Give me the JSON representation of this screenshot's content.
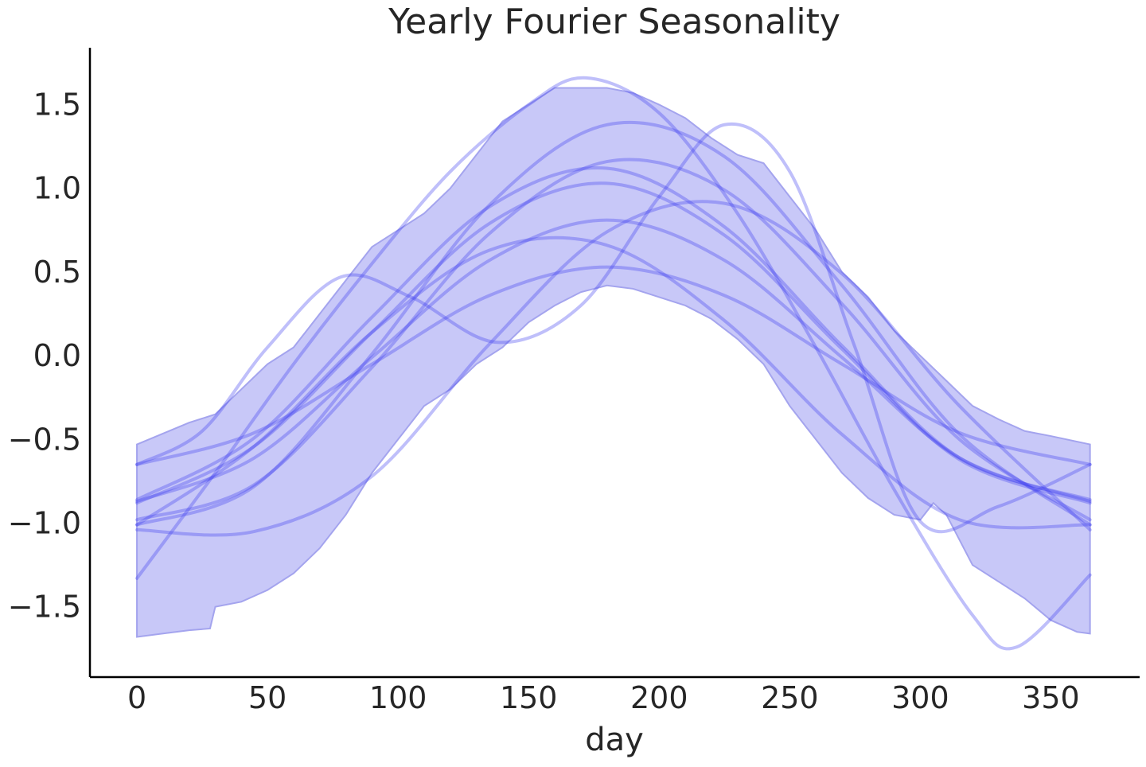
{
  "chart_data": {
    "type": "line",
    "title": "Yearly Fourier Seasonality",
    "xlabel": "day",
    "ylabel": "",
    "xlim": [
      -18,
      384
    ],
    "ylim": [
      -1.92,
      1.84
    ],
    "xticks": [
      0,
      50,
      100,
      150,
      200,
      250,
      300,
      350
    ],
    "xtick_labels": [
      "0",
      "50",
      "100",
      "150",
      "200",
      "250",
      "300",
      "350"
    ],
    "yticks": [
      1.5,
      1.0,
      0.5,
      0.0,
      -0.5,
      -1.0,
      -1.5
    ],
    "ytick_labels": [
      "1.5",
      "1.0",
      "0.5",
      "0.0",
      "−0.5",
      "−1.0",
      "−1.5"
    ],
    "grid": false,
    "colors": {
      "band_fill": "#c8c8f8",
      "band_edge": "#a4a4ee",
      "line": "#3c3cf0",
      "axis": "#000000"
    },
    "band": {
      "upper": {
        "x": [
          0,
          20,
          30,
          40,
          50,
          60,
          70,
          80,
          90,
          100,
          110,
          120,
          130,
          140,
          150,
          160,
          170,
          180,
          190,
          200,
          210,
          220,
          230,
          240,
          250,
          260,
          270,
          280,
          290,
          300,
          310,
          320,
          330,
          340,
          350,
          365
        ],
        "y": [
          -0.53,
          -0.4,
          -0.35,
          -0.2,
          -0.05,
          0.05,
          0.25,
          0.45,
          0.65,
          0.75,
          0.85,
          1.0,
          1.2,
          1.4,
          1.5,
          1.6,
          1.6,
          1.6,
          1.57,
          1.5,
          1.42,
          1.3,
          1.2,
          1.15,
          0.95,
          0.75,
          0.5,
          0.35,
          0.15,
          0.0,
          -0.15,
          -0.3,
          -0.38,
          -0.45,
          -0.48,
          -0.53
        ]
      },
      "lower": {
        "x": [
          0,
          10,
          20,
          28,
          30,
          40,
          50,
          60,
          70,
          80,
          90,
          100,
          110,
          120,
          130,
          140,
          150,
          160,
          170,
          180,
          190,
          200,
          210,
          220,
          230,
          240,
          250,
          260,
          270,
          280,
          290,
          300,
          305,
          310,
          320,
          330,
          340,
          350,
          360,
          365
        ],
        "y": [
          -1.68,
          -1.66,
          -1.64,
          -1.63,
          -1.5,
          -1.47,
          -1.4,
          -1.3,
          -1.15,
          -0.95,
          -0.7,
          -0.5,
          -0.3,
          -0.2,
          -0.05,
          0.05,
          0.2,
          0.3,
          0.38,
          0.42,
          0.4,
          0.35,
          0.3,
          0.22,
          0.1,
          -0.05,
          -0.3,
          -0.5,
          -0.7,
          -0.85,
          -0.95,
          -0.98,
          -0.88,
          -0.95,
          -1.25,
          -1.35,
          -1.45,
          -1.58,
          -1.65,
          -1.66
        ]
      }
    },
    "series": [
      {
        "x": [
          0,
          30,
          60,
          90,
          120,
          150,
          172,
          200,
          230,
          260,
          290,
          320,
          337,
          365
        ],
        "y": [
          -1.33,
          -0.7,
          -0.05,
          0.55,
          1.1,
          1.5,
          1.66,
          1.45,
          0.85,
          0.05,
          -0.8,
          -1.55,
          -1.74,
          -1.31
        ]
      },
      {
        "x": [
          0,
          25,
          50,
          78,
          105,
          138,
          170,
          200,
          225,
          250,
          275,
          300,
          330,
          365
        ],
        "y": [
          -0.65,
          -0.45,
          0.05,
          0.47,
          0.35,
          0.08,
          0.3,
          0.95,
          1.38,
          1.1,
          0.05,
          -0.99,
          -0.9,
          -0.65
        ]
      },
      {
        "x": [
          0,
          45,
          90,
          135,
          180,
          225,
          270,
          315,
          365
        ],
        "y": [
          -1.01,
          -0.78,
          0.01,
          0.9,
          1.38,
          1.19,
          0.42,
          -0.47,
          -1.01
        ]
      },
      {
        "x": [
          0,
          45,
          90,
          135,
          180,
          225,
          270,
          315,
          365
        ],
        "y": [
          -0.98,
          -0.77,
          -0.07,
          0.73,
          1.16,
          0.99,
          0.31,
          -0.5,
          -0.98
        ]
      },
      {
        "x": [
          0,
          45,
          90,
          135,
          180,
          225,
          270,
          315,
          365
        ],
        "y": [
          -0.86,
          -0.49,
          0.23,
          0.89,
          1.12,
          0.77,
          0.06,
          -0.61,
          -0.86
        ]
      },
      {
        "x": [
          0,
          45,
          90,
          135,
          180,
          225,
          270,
          315,
          365
        ],
        "y": [
          -0.88,
          -0.54,
          0.14,
          0.79,
          1.03,
          0.72,
          0.04,
          -0.62,
          -0.88
        ]
      },
      {
        "x": [
          0,
          45,
          90,
          135,
          180,
          225,
          270,
          315,
          365
        ],
        "y": [
          -1.04,
          -1.05,
          -0.72,
          0.07,
          0.74,
          0.91,
          0.49,
          -0.3,
          -1.04
        ]
      },
      {
        "x": [
          0,
          45,
          90,
          135,
          180,
          225,
          270,
          315,
          365
        ],
        "y": [
          -0.87,
          -0.61,
          -0.01,
          0.57,
          0.81,
          0.57,
          -0.01,
          -0.61,
          -0.87
        ]
      },
      {
        "x": [
          0,
          45,
          90,
          135,
          180,
          225,
          270,
          315,
          365
        ],
        "y": [
          -1.01,
          -0.54,
          0.14,
          0.63,
          0.66,
          0.21,
          -0.47,
          -0.98,
          -1.01
        ]
      },
      {
        "x": [
          0,
          45,
          90,
          135,
          180,
          225,
          270,
          315,
          365
        ],
        "y": [
          -0.65,
          -0.46,
          -0.05,
          0.36,
          0.53,
          0.36,
          -0.05,
          -0.46,
          -0.65
        ]
      }
    ]
  }
}
